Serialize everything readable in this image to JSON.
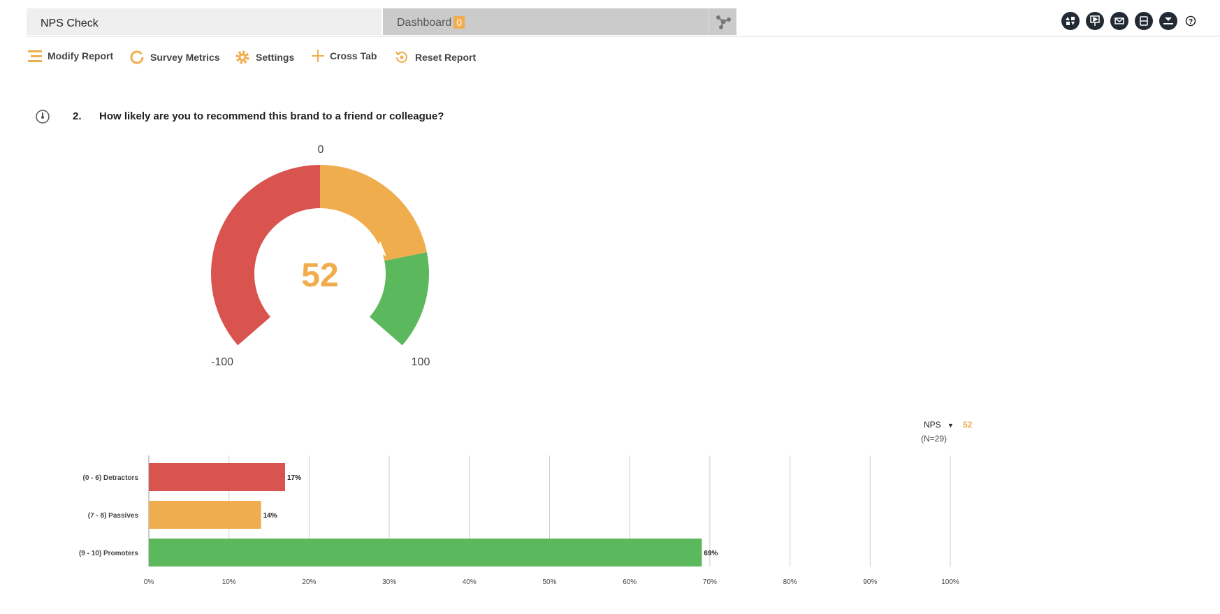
{
  "tabs": {
    "report_title": "NPS Check",
    "dashboard_label": "Dashboard",
    "dashboard_count": "0"
  },
  "header_icons": [
    "reorder-icon",
    "presentation-icon",
    "email-icon",
    "save-icon",
    "download-icon",
    "help-icon"
  ],
  "toolbar": [
    {
      "label": "Modify Report",
      "icon": "menu-lines-icon"
    },
    {
      "label": "Survey Metrics",
      "icon": "donut-icon"
    },
    {
      "label": "Settings",
      "icon": "gear-icon"
    },
    {
      "label": "Cross Tab",
      "icon": "plus-icon"
    },
    {
      "label": "Reset Report",
      "icon": "reset-icon"
    }
  ],
  "question": {
    "number": "2.",
    "text": "How likely are you to recommend this brand to a friend or colleague?",
    "icon": "gauge-icon"
  },
  "gauge": {
    "value": 52,
    "value_label": "52",
    "min_label": "-100",
    "mid_label": "0",
    "max_label": "100",
    "min": -100,
    "max": 100,
    "bands": [
      {
        "from": -100,
        "to": 0,
        "color": "#d9534f"
      },
      {
        "from": 0,
        "to": 60,
        "color": "#f0ad4e"
      },
      {
        "from": 60,
        "to": 100,
        "color": "#5cb85c"
      }
    ]
  },
  "nps_selector": {
    "label": "NPS",
    "value": "52",
    "n": "(N=29)"
  },
  "chart_data": {
    "type": "bar",
    "orientation": "horizontal",
    "categories": [
      "(0 - 6) Detractors",
      "(7 - 8) Passives",
      "(9 - 10) Promoters"
    ],
    "values": [
      17,
      14,
      69
    ],
    "data_labels": [
      "17%",
      "14%",
      "69%"
    ],
    "colors": [
      "#d9534f",
      "#f0ad4e",
      "#5cb85c"
    ],
    "xlim": [
      0,
      100
    ],
    "xticks": [
      "0%",
      "10%",
      "20%",
      "30%",
      "40%",
      "50%",
      "60%",
      "70%",
      "80%",
      "90%",
      "100%"
    ],
    "grid": true
  }
}
